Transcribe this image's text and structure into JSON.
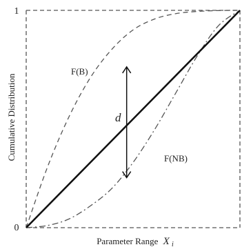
{
  "chart_data": {
    "type": "line",
    "xlabel": "Parameter Range",
    "xlabel_symbol": "X",
    "xlabel_subscript": "i",
    "ylabel": "Cumulative Distribution",
    "ytick_labels": [
      "0",
      "1"
    ],
    "xlim": [
      0,
      1
    ],
    "ylim": [
      0,
      1
    ],
    "grid": false,
    "series": [
      {
        "name": "F(B)",
        "line_style": "dashed",
        "color": "#555555",
        "x": [
          0,
          0.1,
          0.2,
          0.3,
          0.4,
          0.5,
          0.6,
          0.7,
          0.8,
          0.9,
          1.0
        ],
        "y": [
          0,
          0.28,
          0.51,
          0.69,
          0.82,
          0.91,
          0.96,
          0.985,
          0.995,
          0.999,
          1.0
        ]
      },
      {
        "name": "F(NB)",
        "line_style": "dash-dot",
        "color": "#555555",
        "x": [
          0,
          0.1,
          0.2,
          0.3,
          0.4,
          0.5,
          0.6,
          0.7,
          0.8,
          0.9,
          1.0
        ],
        "y": [
          0,
          0.01,
          0.04,
          0.1,
          0.18,
          0.3,
          0.45,
          0.62,
          0.79,
          0.93,
          1.0
        ]
      },
      {
        "name": "",
        "line_style": "solid",
        "color": "#111111",
        "x": [
          0,
          1
        ],
        "y": [
          0,
          1
        ]
      }
    ],
    "annotations": [
      {
        "text": "d",
        "kind": "double-arrow",
        "x": 0.47,
        "y_from": 0.23,
        "y_to": 0.74
      }
    ]
  }
}
